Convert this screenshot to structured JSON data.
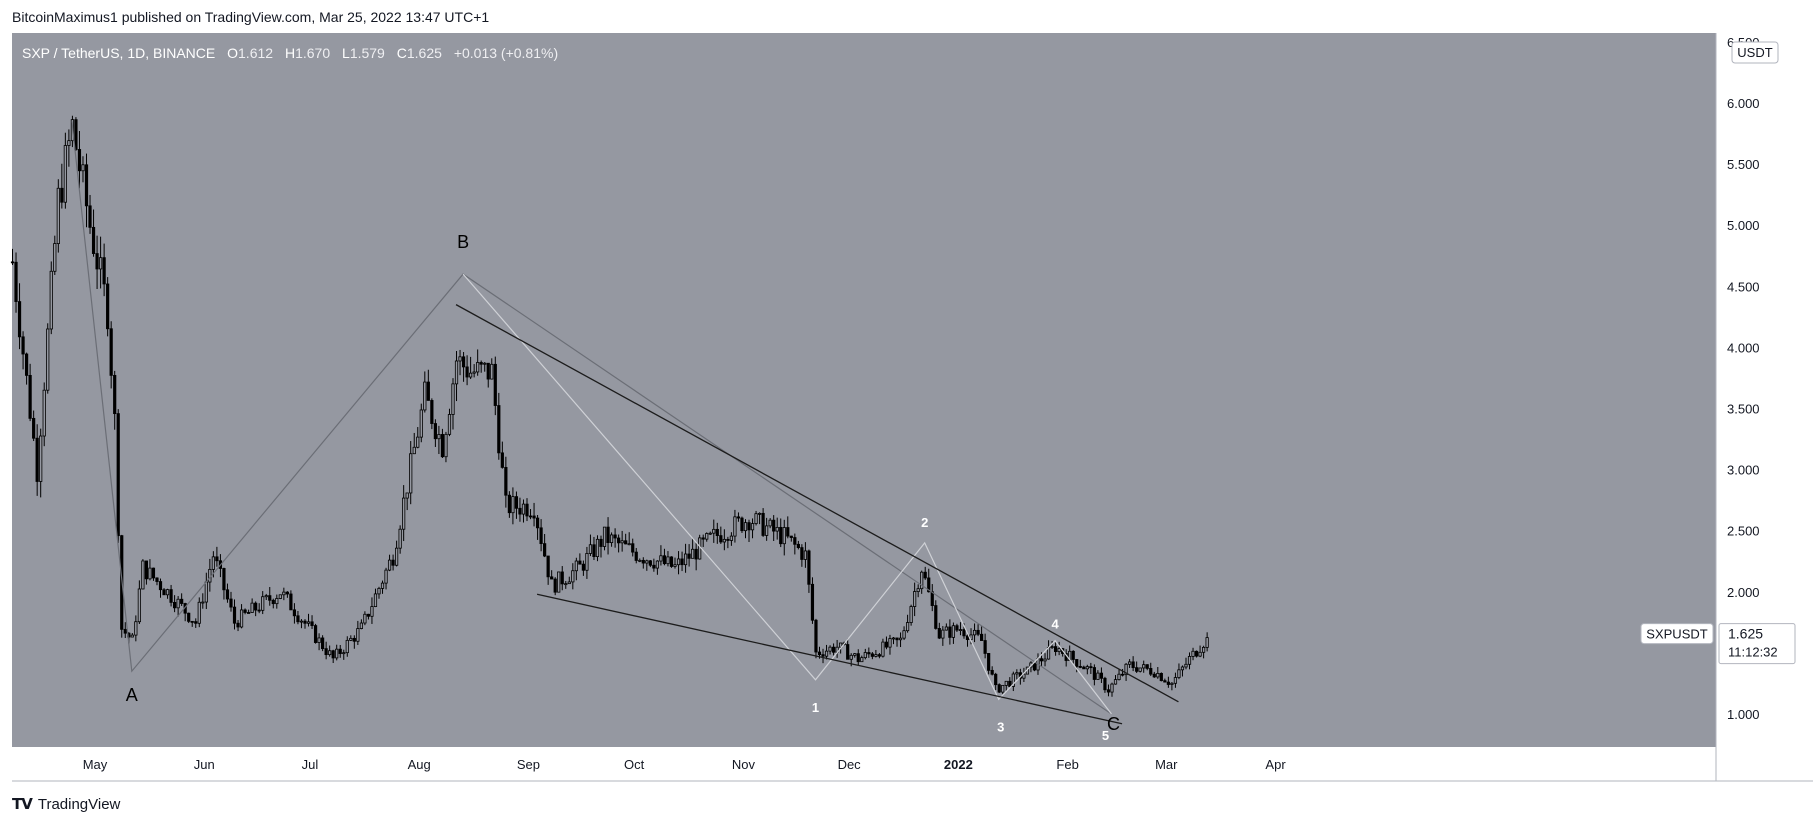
{
  "publish_line": "BitcoinMaximus1 published on TradingView.com, Mar 25, 2022 13:47 UTC+1",
  "footer": {
    "brand": "TradingView",
    "logo_icon": "tradingview-logo-icon"
  },
  "legend": {
    "symbol": "SXP / TetherUS, 1D, BINANCE",
    "o_label": "O",
    "o_value": "1.612",
    "h_label": "H",
    "h_value": "1.670",
    "l_label": "L",
    "l_value": "1.579",
    "c_label": "C",
    "c_value": "1.625",
    "change": "+0.013 (+0.81%)"
  },
  "price_axis": {
    "currency": "USDT",
    "ticks": [
      "6.500",
      "6.000",
      "5.500",
      "5.000",
      "4.500",
      "4.000",
      "3.500",
      "3.000",
      "2.500",
      "2.000",
      "1.500",
      "1.000"
    ],
    "tick_values": [
      6.5,
      6.0,
      5.5,
      5.0,
      4.5,
      4.0,
      3.5,
      3.0,
      2.5,
      2.0,
      1.5,
      1.0
    ],
    "last_price_label": "SXPUSDT",
    "last_price": "1.625",
    "countdown": "11:12:32"
  },
  "time_axis": {
    "ticks": [
      "May",
      "Jun",
      "Jul",
      "Aug",
      "Sep",
      "Oct",
      "Nov",
      "Dec",
      "2022",
      "Feb",
      "Mar",
      "Apr"
    ],
    "tick_days": [
      0,
      31,
      61,
      92,
      123,
      153,
      184,
      214,
      245,
      276,
      304,
      335
    ]
  },
  "colors": {
    "plot_bg": "#9598a1",
    "candle": "#000000",
    "upper_trendline": "#1c1c1c",
    "lower_trendline": "#1c1c1c",
    "abc_path": "#6b6e76",
    "wave_path": "#cfd1d6",
    "wave_label": "#ffffff",
    "abc_label": "#000000",
    "last_price_badge": "#ffffff"
  },
  "chart_data": {
    "type": "candlestick",
    "symbol": "SXP / TetherUS",
    "timeframe": "1D",
    "exchange": "BINANCE",
    "ylim": [
      0.75,
      6.55
    ],
    "x_range": [
      "2021-04-20",
      "2022-04-15"
    ],
    "grid": false,
    "price_path": [
      [
        "2021-04-20",
        4.7
      ],
      [
        "2021-04-27",
        3.0
      ],
      [
        "2021-05-03",
        5.2
      ],
      [
        "2021-05-07",
        5.8
      ],
      [
        "2021-05-12",
        5.0
      ],
      [
        "2021-05-17",
        4.3
      ],
      [
        "2021-05-19",
        3.4
      ],
      [
        "2021-05-21",
        1.7
      ],
      [
        "2021-05-24",
        1.6
      ],
      [
        "2021-05-27",
        2.2
      ],
      [
        "2021-06-03",
        2.0
      ],
      [
        "2021-06-11",
        1.75
      ],
      [
        "2021-06-16",
        2.3
      ],
      [
        "2021-06-22",
        1.75
      ],
      [
        "2021-07-05",
        2.0
      ],
      [
        "2021-07-20",
        1.45
      ],
      [
        "2021-07-28",
        1.7
      ],
      [
        "2021-08-06",
        2.3
      ],
      [
        "2021-08-15",
        3.6
      ],
      [
        "2021-08-20",
        3.2
      ],
      [
        "2021-08-24",
        3.9
      ],
      [
        "2021-08-28",
        3.8
      ],
      [
        "2021-09-03",
        3.8
      ],
      [
        "2021-09-07",
        2.7
      ],
      [
        "2021-09-15",
        2.7
      ],
      [
        "2021-09-20",
        2.05
      ],
      [
        "2021-09-28",
        2.2
      ],
      [
        "2021-10-05",
        2.45
      ],
      [
        "2021-10-15",
        2.3
      ],
      [
        "2021-10-25",
        2.2
      ],
      [
        "2021-11-05",
        2.45
      ],
      [
        "2021-11-15",
        2.6
      ],
      [
        "2021-11-25",
        2.45
      ],
      [
        "2021-12-01",
        2.3
      ],
      [
        "2021-12-04",
        1.5
      ],
      [
        "2021-12-10",
        1.55
      ],
      [
        "2021-12-16",
        1.45
      ],
      [
        "2021-12-28",
        1.6
      ],
      [
        "2022-01-03",
        2.2
      ],
      [
        "2022-01-08",
        1.65
      ],
      [
        "2022-01-14",
        1.7
      ],
      [
        "2022-01-20",
        1.6
      ],
      [
        "2022-01-24",
        1.2
      ],
      [
        "2022-02-02",
        1.35
      ],
      [
        "2022-02-10",
        1.55
      ],
      [
        "2022-02-20",
        1.35
      ],
      [
        "2022-02-25",
        1.2
      ],
      [
        "2022-03-03",
        1.4
      ],
      [
        "2022-03-10",
        1.35
      ],
      [
        "2022-03-15",
        1.25
      ],
      [
        "2022-03-20",
        1.45
      ],
      [
        "2022-03-25",
        1.625
      ]
    ],
    "abc_path": {
      "labels": [
        "A",
        "B",
        "C"
      ],
      "points": [
        [
          "2021-05-07",
          5.85
        ],
        [
          "2021-05-24",
          1.35
        ],
        [
          "2021-08-26",
          4.6
        ],
        [
          "2022-02-26",
          1.0
        ]
      ]
    },
    "waves": {
      "labels": [
        "1",
        "2",
        "3",
        "4",
        "5"
      ],
      "points": [
        [
          "2021-08-26",
          4.6
        ],
        [
          "2021-12-04",
          1.28
        ],
        [
          "2022-01-04",
          2.4
        ],
        [
          "2022-01-25",
          1.12
        ],
        [
          "2022-02-10",
          1.6
        ],
        [
          "2022-02-26",
          1.0
        ]
      ]
    },
    "trendlines": [
      {
        "role": "upper",
        "from": [
          "2021-08-24",
          4.35
        ],
        "to": [
          "2022-03-17",
          1.1
        ]
      },
      {
        "role": "lower",
        "from": [
          "2021-09-16",
          1.98
        ],
        "to": [
          "2022-03-01",
          0.92
        ]
      }
    ],
    "last_price": 1.625
  }
}
